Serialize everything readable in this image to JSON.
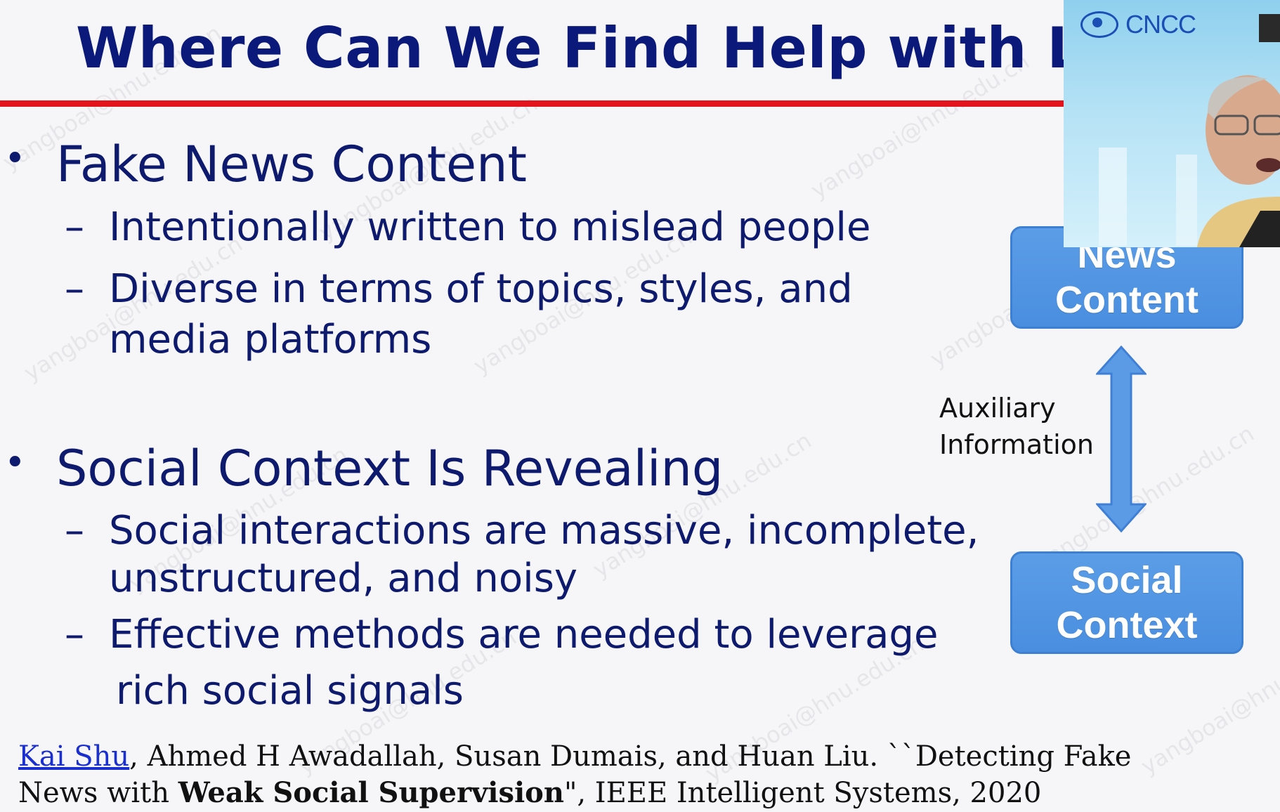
{
  "slide": {
    "title": "Where Can We Find Help with Labe",
    "bullets": [
      {
        "text": "Fake News Content",
        "subs": [
          [
            "Intentionally written to mislead people"
          ],
          [
            "Diverse in terms of topics, styles, and",
            "media platforms"
          ]
        ]
      },
      {
        "text": "Social Context Is Revealing",
        "subs": [
          [
            "Social interactions are massive, incomplete,",
            "unstructured, and noisy"
          ],
          [
            "Effective methods are needed to leverage",
            "rich social signals"
          ]
        ]
      }
    ],
    "diagram": {
      "top_box": [
        "News",
        "Content"
      ],
      "bottom_box": [
        "Social",
        "Context"
      ],
      "aux_label": [
        "Auxiliary",
        "Information"
      ]
    },
    "citation": {
      "author_link": "Kai Shu",
      "rest_line1": ", Ahmed H Awadallah, Susan Dumais, and Huan Liu. ``Detecting Fake",
      "line2_prefix": "News with ",
      "line2_bold": "Weak Social Supervision",
      "line2_suffix": "\", IEEE Intelligent Systems, 2020"
    }
  },
  "webcam": {
    "logo_text": "CNCC"
  },
  "watermark": "yangboai@hnu.edu.cn",
  "colors": {
    "title": "#0b1a7a",
    "rule": "#e3141c",
    "box": "#4a8ee0",
    "arrow": "#3f7fd6"
  }
}
